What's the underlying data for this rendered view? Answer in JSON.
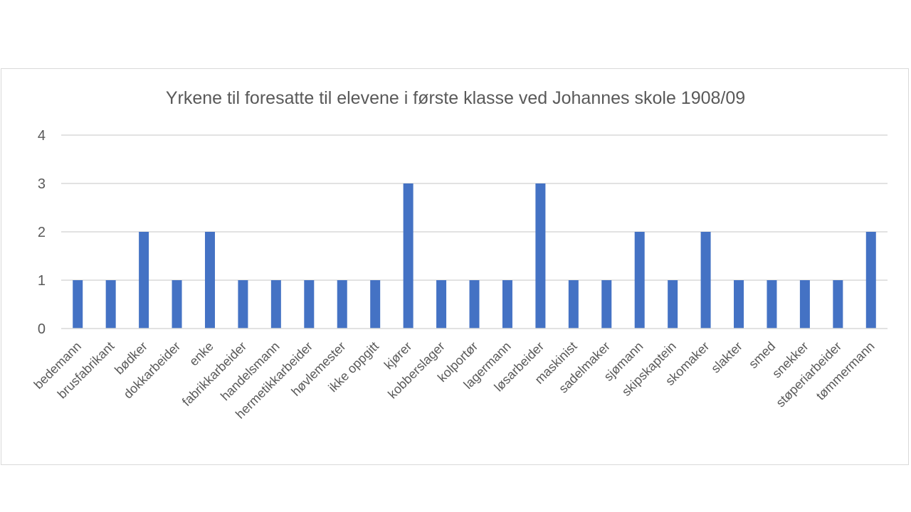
{
  "chart_data": {
    "type": "bar",
    "title": "Yrkene til foresatte til elevene i første klasse ved Johannes skole 1908/09",
    "xlabel": "",
    "ylabel": "",
    "ylim": [
      0,
      4
    ],
    "yticks": [
      0,
      1,
      2,
      3,
      4
    ],
    "grid": true,
    "legend": "none",
    "bar_color": "#4472c4",
    "categories": [
      "bedemann",
      "brusfabrikant",
      "bødker",
      "dokkarbeider",
      "enke",
      "fabrikkarbeider",
      "handelsmann",
      "hermetikkarbeider",
      "høvlemester",
      "ikke oppgitt",
      "kjører",
      "kobberslager",
      "kolportør",
      "lagermann",
      "løsarbeider",
      "maskinist",
      "sadelmaker",
      "sjømann",
      "skipskaptein",
      "skomaker",
      "slakter",
      "smed",
      "snekker",
      "støperiarbeider",
      "tømmermann"
    ],
    "values": [
      1,
      1,
      2,
      1,
      2,
      1,
      1,
      1,
      1,
      1,
      3,
      1,
      1,
      1,
      3,
      1,
      1,
      2,
      1,
      2,
      1,
      1,
      1,
      1,
      2
    ]
  }
}
